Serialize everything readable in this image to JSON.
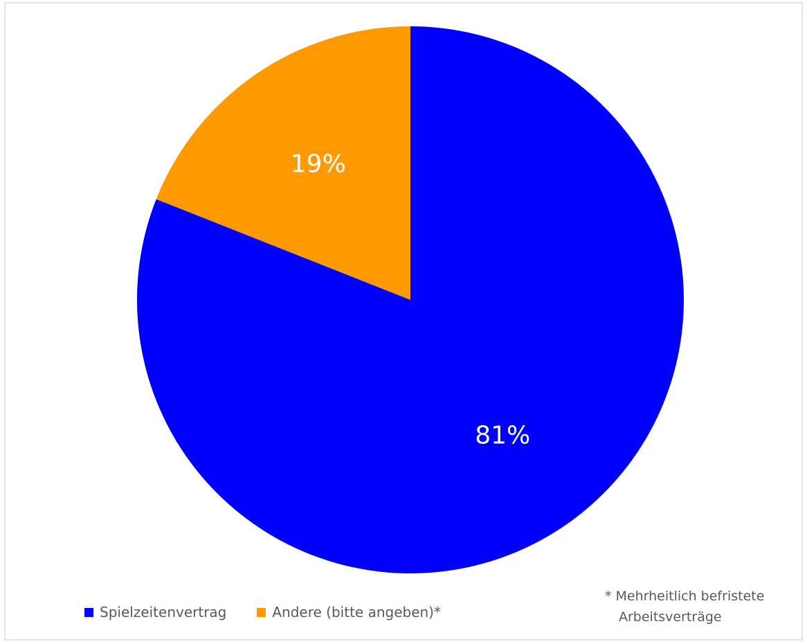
{
  "chart_data": {
    "type": "pie",
    "slices": [
      {
        "label": "Spielzeitenvertrag",
        "value": 81,
        "display": "81%",
        "color": "#0000ff"
      },
      {
        "label": "Andere (bitte angeben)*",
        "value": 19,
        "display": "19%",
        "color": "#ff9900"
      }
    ],
    "start_angle_deg": 0,
    "direction": "clockwise",
    "legend_position": "bottom-left",
    "footnote": {
      "line1": "* Mehrheitlich befristete",
      "line2": "Arbeitsverträge"
    }
  }
}
